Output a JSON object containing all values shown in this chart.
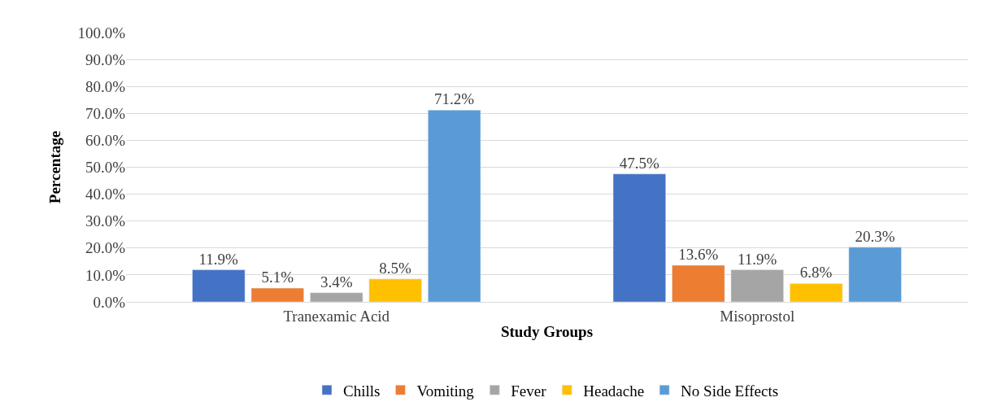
{
  "chart_data": {
    "type": "bar",
    "xlabel": "Study Groups",
    "ylabel": "Percentage",
    "categories": [
      "Tranexamic Acid",
      "Misoprostol"
    ],
    "series": [
      {
        "name": "Chills",
        "color": "#4472c4",
        "values": [
          11.9,
          47.5
        ],
        "value_labels": [
          "11.9%",
          "47.5%"
        ]
      },
      {
        "name": "Vomiting",
        "color": "#ed7d31",
        "values": [
          5.1,
          13.6
        ],
        "value_labels": [
          "5.1%",
          "13.6%"
        ]
      },
      {
        "name": "Fever",
        "color": "#a5a5a5",
        "values": [
          3.4,
          11.9
        ],
        "value_labels": [
          "3.4%",
          "11.9%"
        ]
      },
      {
        "name": "Headache",
        "color": "#ffc000",
        "values": [
          8.5,
          6.8
        ],
        "value_labels": [
          "8.5%",
          "6.8%"
        ]
      },
      {
        "name": "No Side Effects",
        "color": "#5b9bd5",
        "values": [
          71.2,
          20.3
        ],
        "value_labels": [
          "71.2%",
          "20.3%"
        ]
      }
    ],
    "ylim": [
      0,
      100
    ],
    "yticks": [
      {
        "value": 0,
        "label": "0.0%"
      },
      {
        "value": 10,
        "label": "10.0%"
      },
      {
        "value": 20,
        "label": "20.0%"
      },
      {
        "value": 30,
        "label": "30.0%"
      },
      {
        "value": 40,
        "label": "40.0%"
      },
      {
        "value": 50,
        "label": "50.0%"
      },
      {
        "value": 60,
        "label": "60.0%"
      },
      {
        "value": 70,
        "label": "70.0%"
      },
      {
        "value": 80,
        "label": "80.0%"
      },
      {
        "value": 90,
        "label": "90.0%"
      },
      {
        "value": 100,
        "label": "100.0%"
      }
    ],
    "grid": "y",
    "legend": "bottom"
  }
}
